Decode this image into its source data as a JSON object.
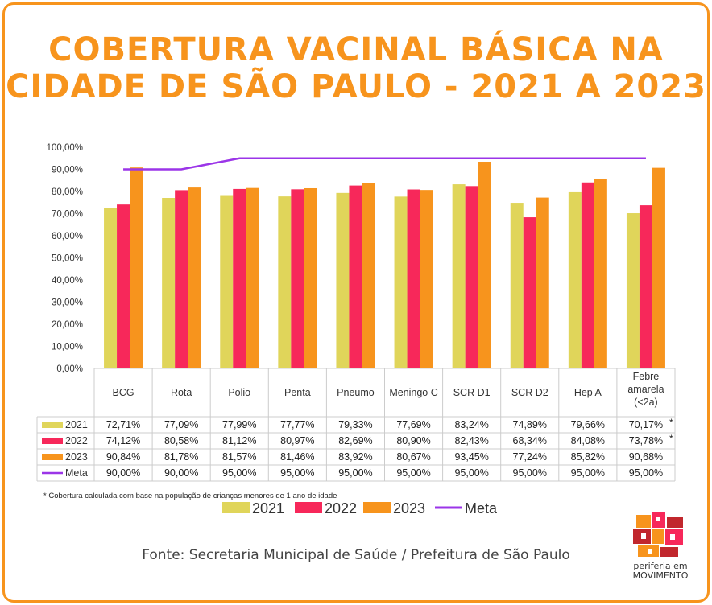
{
  "title_line1": "COBERTURA VACINAL BÁSICA NA",
  "title_line2": "CIDADE DE SÃO PAULO - 2021 A 2023",
  "footnote": "* Cobertura calculada com base na população de crianças menores de 1 ano de idade",
  "source": "Fonte: Secretaria Municipal de Saúde / Prefeitura de São Paulo",
  "logo": {
    "line1": "periferia em",
    "line2": "MOVIMENTO"
  },
  "colors": {
    "2021": "#e0d55a",
    "2022": "#f7285a",
    "2023": "#f7941d",
    "Meta": "#9b35e8",
    "accent": "#f7941d",
    "axis_text": "#333333"
  },
  "chart_data": {
    "type": "bar",
    "categories": [
      "BCG",
      "Rota",
      "Polio",
      "Penta",
      "Pneumo",
      "Meningo C",
      "SCR D1",
      "SCR D2",
      "Hep A",
      "Febre amarela (<2a)"
    ],
    "category_lines": [
      [
        "BCG"
      ],
      [
        "Rota"
      ],
      [
        "Polio"
      ],
      [
        "Penta"
      ],
      [
        "Pneumo"
      ],
      [
        "Meningo C"
      ],
      [
        "SCR D1"
      ],
      [
        "SCR D2"
      ],
      [
        "Hep A"
      ],
      [
        "Febre",
        "amarela",
        "(<2a)"
      ]
    ],
    "series": [
      {
        "name": "2021",
        "type": "bar",
        "values": [
          72.71,
          77.09,
          77.99,
          77.77,
          79.33,
          77.69,
          83.24,
          74.89,
          79.66,
          70.17
        ],
        "labels": [
          "72,71%",
          "77,09%",
          "77,99%",
          "77,77%",
          "79,33%",
          "77,69%",
          "83,24%",
          "74,89%",
          "79,66%",
          "70,17%"
        ]
      },
      {
        "name": "2022",
        "type": "bar",
        "values": [
          74.12,
          80.58,
          81.12,
          80.97,
          82.69,
          80.9,
          82.43,
          68.34,
          84.08,
          73.78
        ],
        "labels": [
          "74,12%",
          "80,58%",
          "81,12%",
          "80,97%",
          "82,69%",
          "80,90%",
          "82,43%",
          "68,34%",
          "84,08%",
          "73,78%"
        ]
      },
      {
        "name": "2023",
        "type": "bar",
        "values": [
          90.84,
          81.78,
          81.57,
          81.46,
          83.92,
          80.67,
          93.45,
          77.24,
          85.82,
          90.68
        ],
        "labels": [
          "90,84%",
          "81,78%",
          "81,57%",
          "81,46%",
          "83,92%",
          "80,67%",
          "93,45%",
          "77,24%",
          "85,82%",
          "90,68%"
        ]
      },
      {
        "name": "Meta",
        "type": "line",
        "values": [
          90,
          90,
          95,
          95,
          95,
          95,
          95,
          95,
          95,
          95
        ],
        "labels": [
          "90,00%",
          "90,00%",
          "95,00%",
          "95,00%",
          "95,00%",
          "95,00%",
          "95,00%",
          "95,00%",
          "95,00%",
          "95,00%"
        ]
      }
    ],
    "asterisk_marks": {
      "series": [
        "2021",
        "2022"
      ],
      "category": "Febre amarela (<2a)",
      "mark": "*"
    },
    "yticks": [
      "0,00%",
      "10,00%",
      "20,00%",
      "30,00%",
      "40,00%",
      "50,00%",
      "60,00%",
      "70,00%",
      "80,00%",
      "90,00%",
      "100,00%"
    ],
    "ylim": [
      0,
      100
    ],
    "grid": false,
    "legend": [
      "2021",
      "2022",
      "2023",
      "Meta"
    ],
    "legend_position": "bottom"
  }
}
